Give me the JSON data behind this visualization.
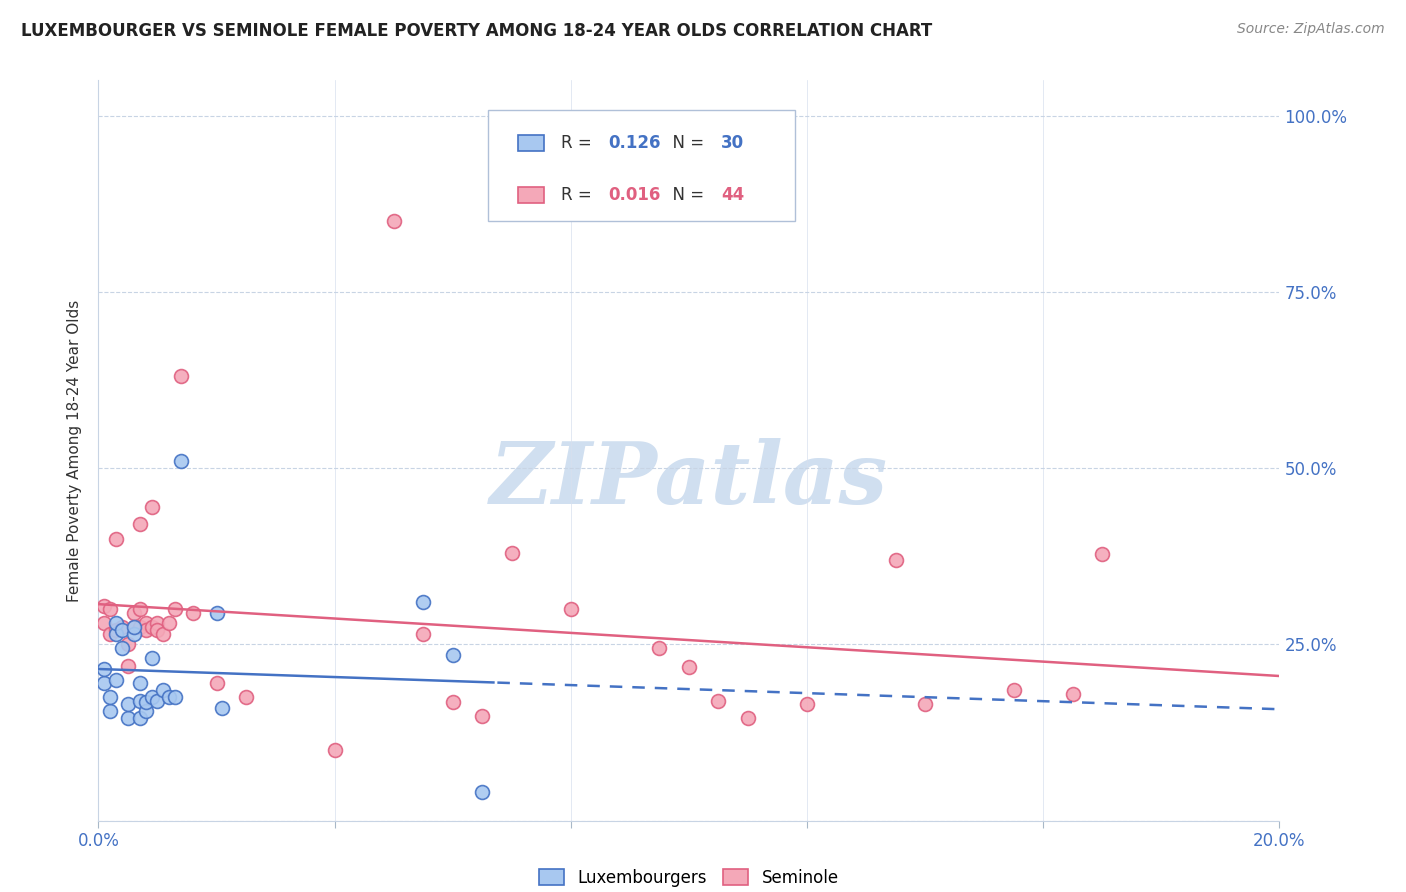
{
  "title": "LUXEMBOURGER VS SEMINOLE FEMALE POVERTY AMONG 18-24 YEAR OLDS CORRELATION CHART",
  "source": "Source: ZipAtlas.com",
  "ylabel": "Female Poverty Among 18-24 Year Olds",
  "x_min": 0.0,
  "x_max": 0.2,
  "y_min": 0.0,
  "y_max": 1.05,
  "x_ticks": [
    0.0,
    0.04,
    0.08,
    0.12,
    0.16,
    0.2
  ],
  "x_tick_labels": [
    "0.0%",
    "",
    "",
    "",
    "",
    "20.0%"
  ],
  "y_ticks": [
    0.0,
    0.25,
    0.5,
    0.75,
    1.0
  ],
  "y_tick_labels": [
    "",
    "25.0%",
    "50.0%",
    "75.0%",
    "100.0%"
  ],
  "legend_blue_r": "0.126",
  "legend_blue_n": "30",
  "legend_pink_r": "0.016",
  "legend_pink_n": "44",
  "blue_color": "#a8c8f0",
  "pink_color": "#f4a8b8",
  "blue_edge_color": "#4472c4",
  "pink_edge_color": "#e06080",
  "blue_line_color": "#4472c4",
  "pink_line_color": "#e06080",
  "watermark_text": "ZIPatlas",
  "blue_points_x": [
    0.001,
    0.001,
    0.002,
    0.002,
    0.003,
    0.003,
    0.003,
    0.004,
    0.004,
    0.005,
    0.005,
    0.006,
    0.006,
    0.007,
    0.007,
    0.007,
    0.008,
    0.008,
    0.009,
    0.009,
    0.01,
    0.011,
    0.012,
    0.013,
    0.014,
    0.02,
    0.021,
    0.055,
    0.06,
    0.065
  ],
  "blue_points_y": [
    0.195,
    0.215,
    0.155,
    0.175,
    0.2,
    0.265,
    0.28,
    0.245,
    0.27,
    0.145,
    0.165,
    0.265,
    0.275,
    0.195,
    0.145,
    0.17,
    0.155,
    0.168,
    0.175,
    0.23,
    0.17,
    0.185,
    0.175,
    0.175,
    0.51,
    0.295,
    0.16,
    0.31,
    0.235,
    0.04
  ],
  "pink_points_x": [
    0.001,
    0.001,
    0.002,
    0.002,
    0.003,
    0.003,
    0.004,
    0.005,
    0.005,
    0.006,
    0.006,
    0.007,
    0.007,
    0.007,
    0.008,
    0.008,
    0.009,
    0.009,
    0.01,
    0.01,
    0.011,
    0.012,
    0.013,
    0.014,
    0.016,
    0.02,
    0.025,
    0.04,
    0.05,
    0.055,
    0.06,
    0.065,
    0.07,
    0.08,
    0.095,
    0.1,
    0.105,
    0.11,
    0.12,
    0.135,
    0.14,
    0.155,
    0.165,
    0.17
  ],
  "pink_points_y": [
    0.28,
    0.305,
    0.265,
    0.3,
    0.27,
    0.4,
    0.275,
    0.22,
    0.25,
    0.275,
    0.295,
    0.3,
    0.275,
    0.42,
    0.28,
    0.27,
    0.275,
    0.445,
    0.28,
    0.27,
    0.265,
    0.28,
    0.3,
    0.63,
    0.295,
    0.195,
    0.175,
    0.1,
    0.85,
    0.265,
    0.168,
    0.148,
    0.38,
    0.3,
    0.245,
    0.218,
    0.17,
    0.145,
    0.165,
    0.37,
    0.165,
    0.185,
    0.18,
    0.378
  ]
}
